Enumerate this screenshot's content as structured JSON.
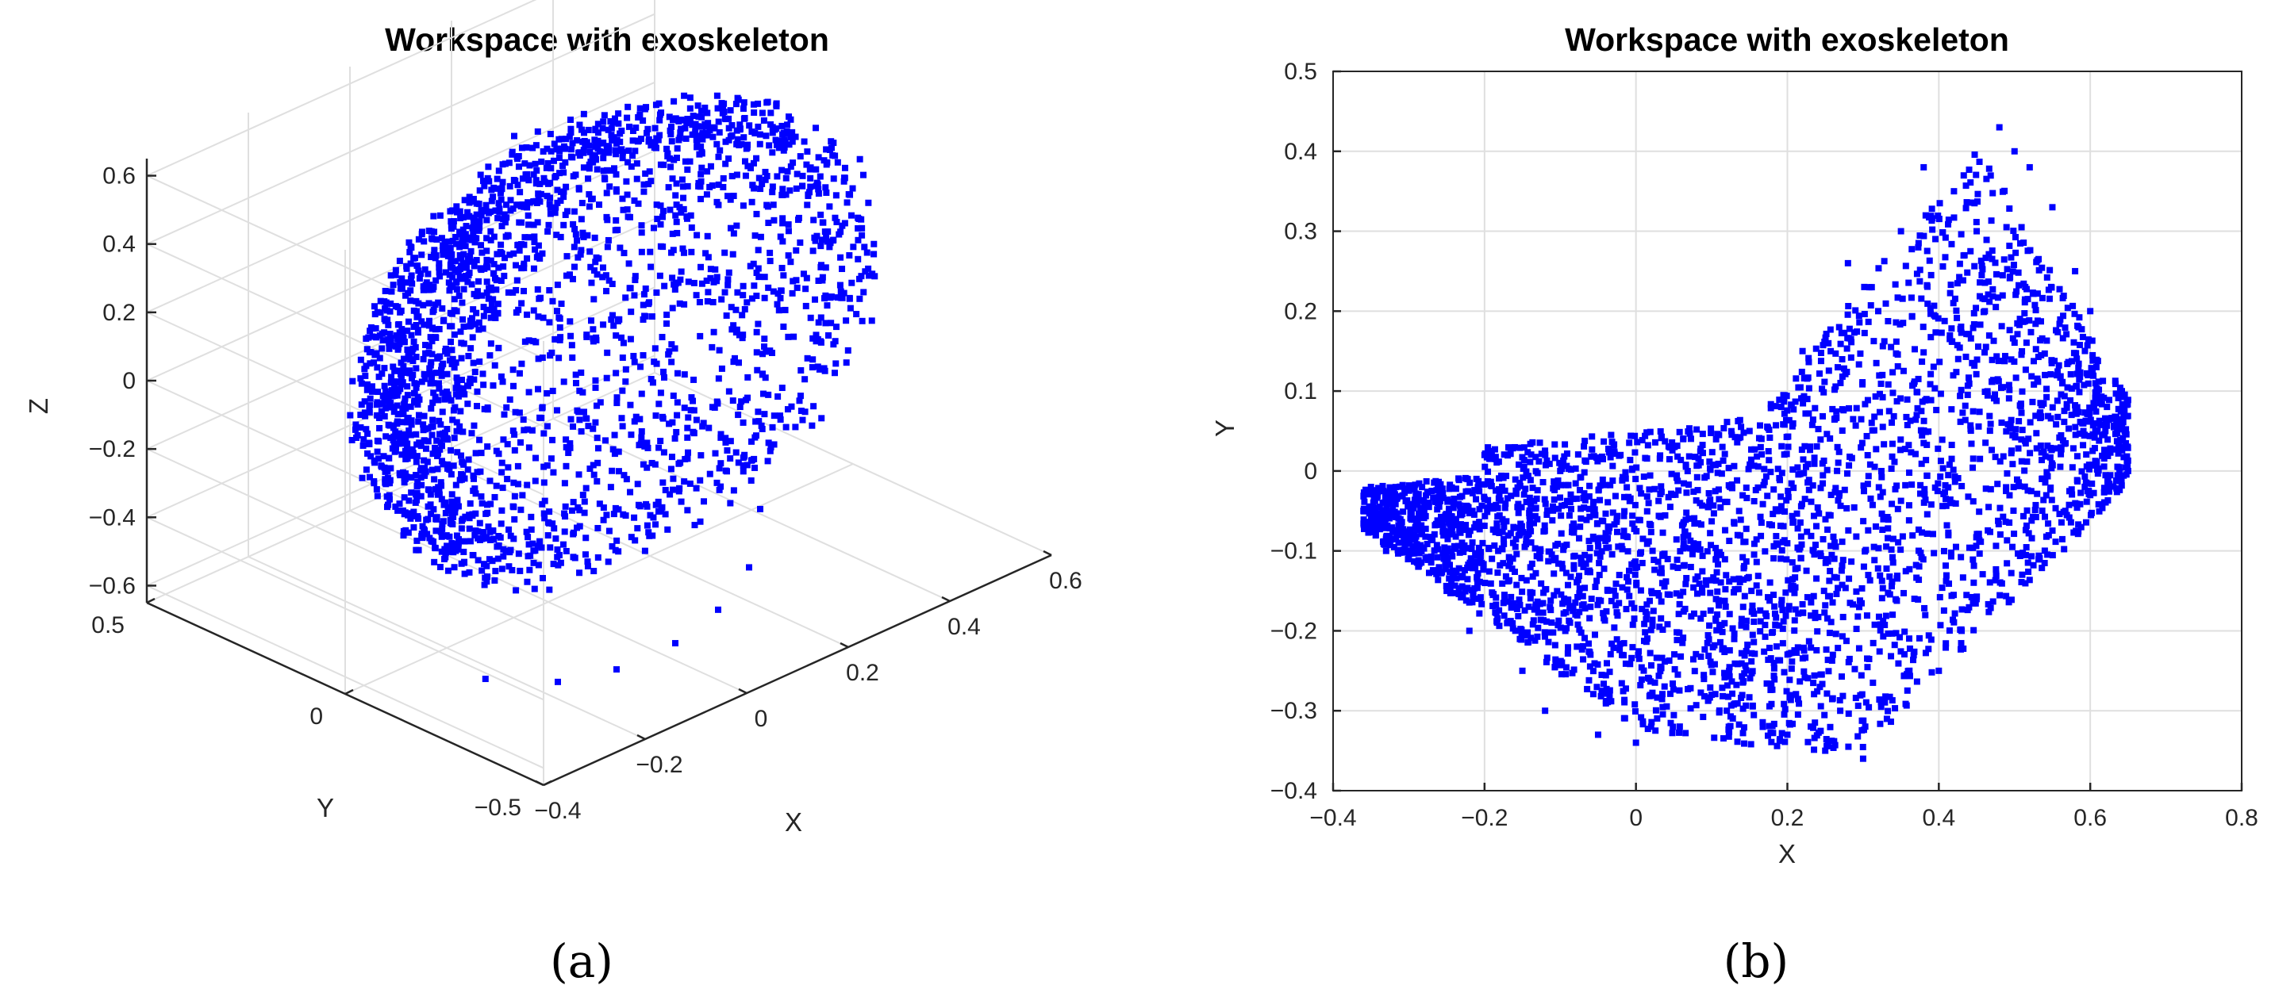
{
  "chart_data": [
    {
      "type": "scatter",
      "projection": "3d",
      "title": "Workspace with exoskeleton",
      "caption": "(a)",
      "xlabel": "X",
      "ylabel": "Y",
      "zlabel": "Z",
      "xlim": [
        -0.4,
        0.6
      ],
      "ylim": [
        -0.5,
        0.5
      ],
      "zlim": [
        -0.65,
        0.65
      ],
      "xticks": [
        "−0.4",
        "−0.2",
        "0",
        "0.2",
        "0.4",
        "0.6"
      ],
      "yticks": [
        "−0.5",
        "0",
        "0.5"
      ],
      "zticks": [
        "−0.6",
        "−0.4",
        "−0.2",
        "0",
        "0.2",
        "0.4",
        "0.6"
      ],
      "grid": true,
      "marker_color": "#0000ff",
      "series_note": "sampled points forming a hemispherical workspace shell",
      "x": [
        0.05,
        0.12,
        0.2,
        0.28,
        0.35,
        0.42,
        0.48,
        0.5,
        0.45,
        0.38,
        0.3,
        0.22,
        0.15,
        0.08,
        0.02,
        -0.05,
        -0.1,
        -0.15,
        -0.2,
        -0.25,
        -0.3,
        -0.32,
        -0.28,
        -0.2,
        -0.1,
        0.0,
        0.1,
        0.2,
        0.3,
        0.4
      ],
      "y": [
        0.15,
        0.18,
        0.2,
        0.22,
        0.2,
        0.15,
        0.05,
        -0.05,
        -0.12,
        -0.18,
        -0.2,
        -0.22,
        -0.2,
        -0.15,
        -0.1,
        -0.05,
        0.05,
        0.1,
        0.0,
        -0.1,
        -0.05,
        0.0,
        -0.2,
        -0.28,
        -0.3,
        -0.32,
        -0.3,
        -0.25,
        -0.15,
        0.0
      ],
      "z": [
        0.6,
        0.55,
        0.52,
        0.45,
        0.38,
        0.3,
        0.2,
        0.1,
        0.0,
        -0.1,
        -0.2,
        -0.28,
        -0.35,
        -0.42,
        -0.48,
        -0.52,
        0.3,
        0.2,
        0.1,
        0.0,
        -0.05,
        0.05,
        -0.58,
        -0.6,
        -0.62,
        -0.6,
        -0.58,
        -0.55,
        -0.5,
        -0.45
      ]
    },
    {
      "type": "scatter",
      "title": "Workspace with exoskeleton",
      "caption": "(b)",
      "xlabel": "X",
      "ylabel": "Y",
      "xlim": [
        -0.4,
        0.8
      ],
      "ylim": [
        -0.4,
        0.5
      ],
      "xticks": [
        "−0.4",
        "−0.2",
        "0",
        "0.2",
        "0.4",
        "0.6",
        "0.8"
      ],
      "yticks": [
        "−0.4",
        "−0.3",
        "−0.2",
        "−0.1",
        "0",
        "0.1",
        "0.2",
        "0.3",
        "0.4",
        "0.5"
      ],
      "grid": true,
      "marker_color": "#0000ff",
      "series_note": "sampled points of the workspace projected on the X-Y plane",
      "x": [
        -0.35,
        -0.33,
        -0.3,
        -0.25,
        -0.22,
        -0.2,
        -0.15,
        -0.12,
        -0.1,
        -0.05,
        0.0,
        0.02,
        0.05,
        0.1,
        0.12,
        0.15,
        0.2,
        0.22,
        0.25,
        0.28,
        0.3,
        0.32,
        0.35,
        0.38,
        0.4,
        0.42,
        0.45,
        0.48,
        0.5,
        0.52,
        0.55,
        0.58,
        0.6,
        0.62,
        0.65
      ],
      "y": [
        -0.02,
        -0.1,
        -0.08,
        -0.15,
        -0.2,
        0.02,
        -0.25,
        -0.3,
        0.0,
        -0.33,
        -0.34,
        -0.32,
        0.03,
        -0.28,
        -0.3,
        0.05,
        -0.33,
        0.15,
        -0.35,
        0.26,
        -0.36,
        0.2,
        0.3,
        0.38,
        -0.25,
        0.35,
        0.3,
        0.43,
        0.4,
        0.38,
        0.33,
        0.25,
        0.2,
        0.05,
        0.0
      ]
    }
  ]
}
